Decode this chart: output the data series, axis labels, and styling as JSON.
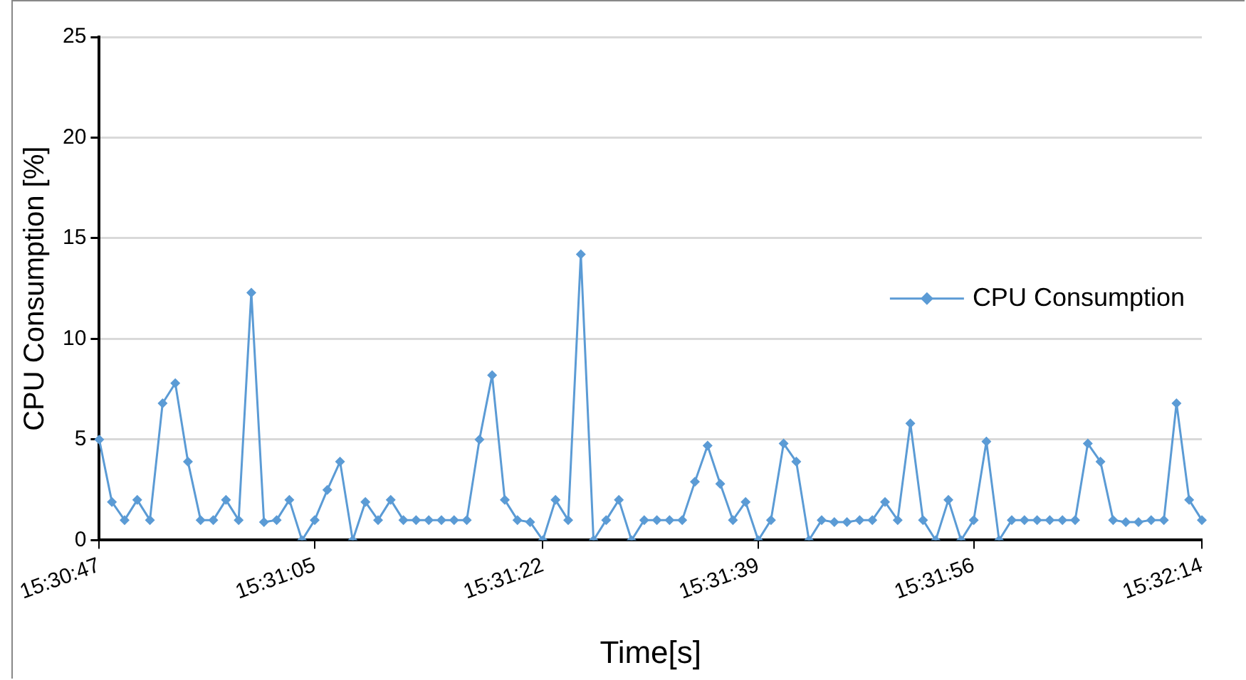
{
  "chart_data": {
    "type": "line",
    "xlabel": "Time[s]",
    "ylabel": "CPU Consumption [%]",
    "categories": [
      "15:30:47",
      null,
      null,
      null,
      null,
      null,
      null,
      null,
      null,
      null,
      null,
      null,
      null,
      null,
      null,
      null,
      null,
      "15:31:05",
      null,
      null,
      null,
      null,
      null,
      null,
      null,
      null,
      null,
      null,
      null,
      null,
      null,
      null,
      null,
      null,
      null,
      "15:31:22",
      null,
      null,
      null,
      null,
      null,
      null,
      null,
      null,
      null,
      null,
      null,
      null,
      null,
      null,
      null,
      null,
      "15:31:39",
      null,
      null,
      null,
      null,
      null,
      null,
      null,
      null,
      null,
      null,
      null,
      null,
      null,
      null,
      null,
      null,
      "15:31:56",
      null,
      null,
      null,
      null,
      null,
      null,
      null,
      null,
      null,
      null,
      null,
      null,
      null,
      null,
      null,
      null,
      null,
      "15:32:14"
    ],
    "series": [
      {
        "name": "CPU Consumption",
        "color": "#5b9bd5",
        "values": [
          5,
          1.9,
          1,
          2,
          1,
          6.8,
          7.8,
          3.9,
          1,
          1,
          2,
          1,
          12.3,
          0.9,
          1,
          2,
          0,
          1,
          2.5,
          3.9,
          0,
          1.9,
          1,
          2,
          1,
          1,
          1,
          1,
          1,
          1,
          5,
          8.2,
          2,
          1,
          0.9,
          0,
          2,
          1,
          14.2,
          0,
          1,
          2,
          0,
          1,
          1,
          1,
          1,
          2.9,
          4.7,
          2.8,
          1,
          1.9,
          0,
          1,
          4.8,
          3.9,
          0,
          1,
          0.9,
          0.9,
          1,
          1,
          1.9,
          1,
          5.8,
          1,
          0,
          2,
          0,
          1,
          4.9,
          0,
          1,
          1,
          1,
          1,
          1,
          1,
          4.8,
          3.9,
          1,
          0.9,
          0.9,
          1,
          1,
          6.8,
          2,
          1
        ]
      }
    ],
    "ylim": [
      0,
      25
    ],
    "yticks": [
      0,
      5,
      10,
      15,
      20,
      25
    ],
    "grid": "y",
    "legend": "right",
    "marker": "diamond",
    "line_style": "solid"
  }
}
